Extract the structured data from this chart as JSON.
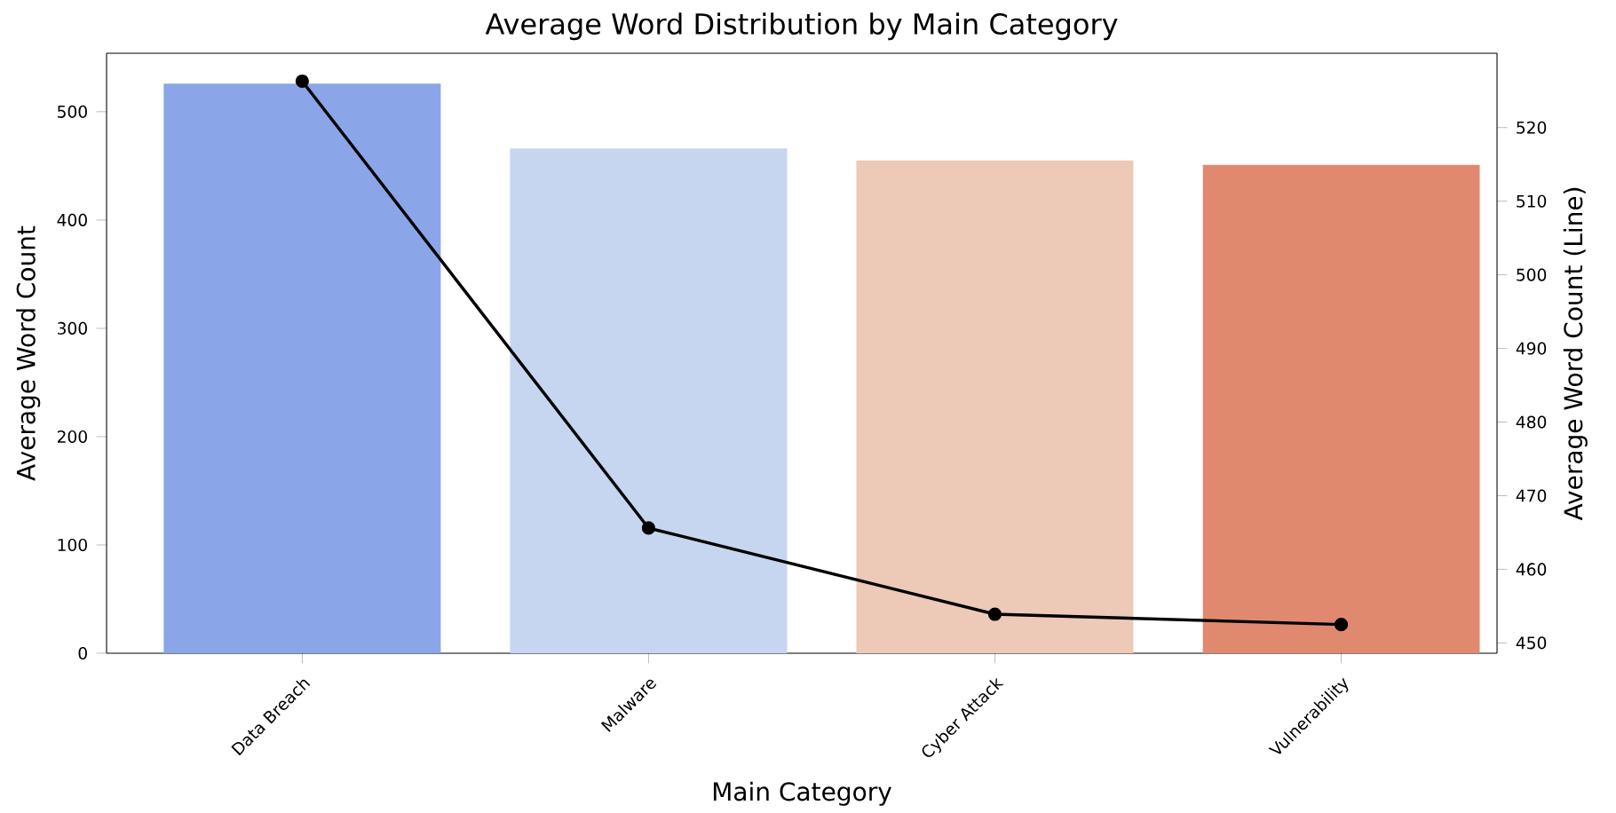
{
  "chart_data": {
    "type": "bar",
    "title": "Average Word Distribution by Main Category",
    "xlabel": "Main Category",
    "ylabel": "Average Word Count",
    "y2label": "Average Word Count (Line)",
    "categories": [
      "Data Breach",
      "Malware",
      "Cyber Attack",
      "Vulnerability"
    ],
    "series": [
      {
        "colors": [
          "#8aa5e8",
          "#c6d6f0",
          "#edc9b7",
          "#e0896f"
        ],
        "values": [
          526,
          466,
          455,
          451
        ]
      },
      {
        "type": "line",
        "axis": "y2",
        "color": "#000000",
        "marker": "circle",
        "values": [
          526.3,
          465.6,
          453.9,
          452.5
        ]
      }
    ],
    "ylim": [
      0,
      554
    ],
    "yticks": [
      0,
      100,
      200,
      300,
      400,
      500
    ],
    "y2lim": [
      448.6,
      530.1
    ],
    "y2ticks": [
      450,
      460,
      470,
      480,
      490,
      500,
      510,
      520
    ]
  }
}
